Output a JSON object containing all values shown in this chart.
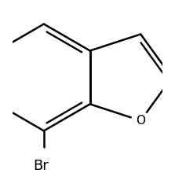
{
  "background_color": "#ffffff",
  "line_color": "#000000",
  "line_width": 1.8,
  "font_size_O": 11,
  "font_size_Br": 13,
  "label_Br": "Br",
  "label_O": "O",
  "fig_width": 2.23,
  "fig_height": 2.2,
  "dpi": 100,
  "xlim": [
    -0.3,
    2.5
  ],
  "ylim": [
    -1.4,
    1.6
  ]
}
